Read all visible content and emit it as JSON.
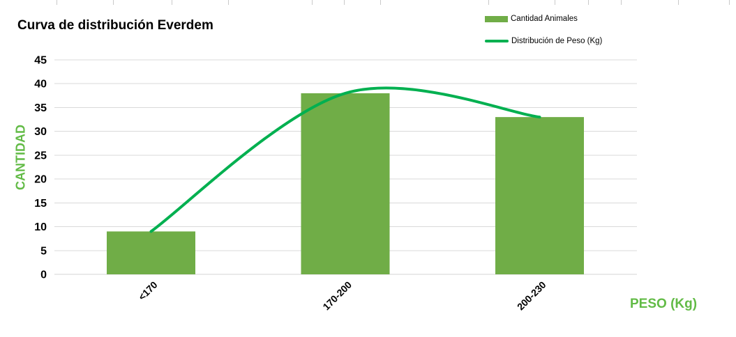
{
  "chart": {
    "title": "Curva de distribución Everdem",
    "y_axis_title": "CANTIDAD",
    "x_axis_title": "PESO (Kg)",
    "legend_items": [
      {
        "label": "Cantidad Animales",
        "swatch": "bar"
      },
      {
        "label": "Distribución de Peso (Kg)",
        "swatch": "line"
      }
    ],
    "colors": {
      "bar": "#70AD47",
      "line": "#00B050",
      "axis_title": "#62BB46",
      "grid": "#D9D9D9",
      "axis_line": "#D4D4D4",
      "text": "#000000",
      "spreadsheet_tick": "#C9C9C9"
    }
  },
  "chart_data": {
    "type": "bar",
    "subtype": "combo-bar-with-smooth-line",
    "title": "Curva de distribución Everdem",
    "xlabel": "PESO (Kg)",
    "ylabel": "CANTIDAD",
    "categories": [
      "<170",
      "170-200",
      "200-230"
    ],
    "series": [
      {
        "name": "Cantidad Animales",
        "type": "bar",
        "color": "#70AD47",
        "values": [
          9,
          38,
          33
        ]
      },
      {
        "name": "Distribución de Peso (Kg)",
        "type": "line",
        "smooth": true,
        "color": "#00B050",
        "values": [
          9,
          38,
          33
        ]
      }
    ],
    "ylim": [
      0,
      45
    ],
    "y_ticks": [
      0,
      5,
      10,
      15,
      20,
      25,
      30,
      35,
      40,
      45
    ],
    "grid": true,
    "legend_position": "top-right",
    "x_tick_label_rotation": -45
  }
}
